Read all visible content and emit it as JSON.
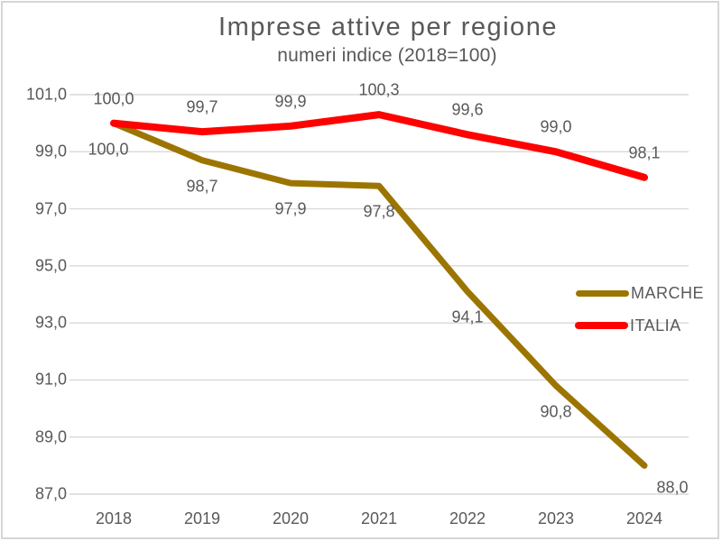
{
  "chart_data": {
    "type": "line",
    "title": "Imprese attive per regione",
    "subtitle": "numeri indice (2018=100)",
    "categories": [
      "2018",
      "2019",
      "2020",
      "2021",
      "2022",
      "2023",
      "2024"
    ],
    "series": [
      {
        "name": "MARCHE",
        "color": "#9c7500",
        "values": [
          100.0,
          98.7,
          97.9,
          97.8,
          94.1,
          90.8,
          88.0
        ],
        "labels": [
          "100,0",
          "98,7",
          "97,9",
          "97,8",
          "94,1",
          "90,8",
          "88,0"
        ],
        "label_position": "below"
      },
      {
        "name": "ITALIA",
        "color": "#fe0202",
        "values": [
          100.0,
          99.7,
          99.9,
          100.3,
          99.6,
          99.0,
          98.1
        ],
        "labels": [
          "100,0",
          "99,7",
          "99,9",
          "100,3",
          "99,6",
          "99,0",
          "98,1"
        ],
        "label_position": "above"
      }
    ],
    "y_ticks": [
      "101,0",
      "99,0",
      "97,0",
      "95,0",
      "93,0",
      "91,0",
      "89,0",
      "87,0"
    ],
    "y_tick_values": [
      101,
      99,
      97,
      95,
      93,
      91,
      89,
      87
    ],
    "ylim": [
      87,
      101
    ],
    "grid": "horizontal-only",
    "legend_position": "middle-right",
    "text_color": "#595959",
    "grid_color": "#d9d9d9"
  }
}
